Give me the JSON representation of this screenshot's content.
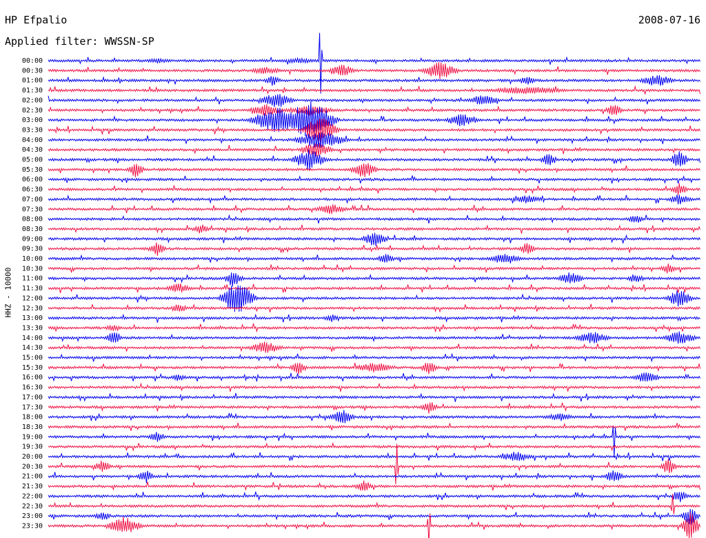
{
  "header": {
    "station": "HP Efpalio",
    "filter": "Applied filter: WWSSN-SP",
    "date": "2008-07-16",
    "channel": "HHZ - 10000"
  },
  "colors": {
    "blue": "#0000ee",
    "red": "#ee1144"
  },
  "chart_data": {
    "type": "line",
    "title": "HP Efpalio",
    "subtitle": "Applied filter: WWSSN-SP",
    "ylabel": "HHZ - 10000",
    "grid": false,
    "rows": [
      "00:00",
      "00:30",
      "01:00",
      "01:30",
      "02:00",
      "02:30",
      "03:00",
      "03:30",
      "04:00",
      "04:30",
      "05:00",
      "05:30",
      "06:00",
      "06:30",
      "07:00",
      "07:30",
      "08:00",
      "08:30",
      "09:00",
      "09:30",
      "10:00",
      "10:30",
      "11:00",
      "11:30",
      "12:00",
      "12:30",
      "13:00",
      "13:30",
      "14:00",
      "14:30",
      "15:00",
      "15:30",
      "16:00",
      "16:30",
      "17:00",
      "17:30",
      "18:00",
      "18:30",
      "19:00",
      "19:30",
      "20:00",
      "20:30",
      "21:00",
      "21:30",
      "22:00",
      "22:30",
      "23:00",
      "23:30"
    ],
    "row_minutes": 30,
    "series_colors": [
      "blue",
      "red"
    ],
    "events": [
      {
        "row": 0,
        "minute": 11.5,
        "amp": 4,
        "dur": 3
      },
      {
        "row": 0,
        "minute": 12.5,
        "amp": 60,
        "dur": 2,
        "spike": true
      },
      {
        "row": 0,
        "minute": 5,
        "amp": 4,
        "dur": 2
      },
      {
        "row": 1,
        "minute": 10,
        "amp": 6,
        "dur": 2
      },
      {
        "row": 1,
        "minute": 13.5,
        "amp": 10,
        "dur": 1.5
      },
      {
        "row": 1,
        "minute": 18,
        "amp": 14,
        "dur": 2
      },
      {
        "row": 2,
        "minute": 10.3,
        "amp": 8,
        "dur": 1
      },
      {
        "row": 2,
        "minute": 28,
        "amp": 10,
        "dur": 2
      },
      {
        "row": 2,
        "minute": 22,
        "amp": 8,
        "dur": 1
      },
      {
        "row": 3,
        "minute": 22,
        "amp": 6,
        "dur": 5
      },
      {
        "row": 4,
        "minute": 10.5,
        "amp": 12,
        "dur": 2
      },
      {
        "row": 4,
        "minute": 20,
        "amp": 8,
        "dur": 2
      },
      {
        "row": 5,
        "minute": 10,
        "amp": 10,
        "dur": 2
      },
      {
        "row": 5,
        "minute": 12,
        "amp": 8,
        "dur": 3
      },
      {
        "row": 5,
        "minute": 26,
        "amp": 10,
        "dur": 1
      },
      {
        "row": 6,
        "minute": 10.5,
        "amp": 20,
        "dur": 3
      },
      {
        "row": 6,
        "minute": 12,
        "amp": 30,
        "dur": 3
      },
      {
        "row": 6,
        "minute": 19,
        "amp": 10,
        "dur": 2
      },
      {
        "row": 7,
        "minute": 12.5,
        "amp": 22,
        "dur": 2
      },
      {
        "row": 8,
        "minute": 12.5,
        "amp": 14,
        "dur": 3
      },
      {
        "row": 9,
        "minute": 12.3,
        "amp": 12,
        "dur": 2
      },
      {
        "row": 10,
        "minute": 12,
        "amp": 16,
        "dur": 2
      },
      {
        "row": 10,
        "minute": 23,
        "amp": 10,
        "dur": 1
      },
      {
        "row": 10,
        "minute": 29,
        "amp": 16,
        "dur": 1
      },
      {
        "row": 11,
        "minute": 14.5,
        "amp": 14,
        "dur": 1.5
      },
      {
        "row": 11,
        "minute": 4,
        "amp": 12,
        "dur": 1
      },
      {
        "row": 13,
        "minute": 29,
        "amp": 10,
        "dur": 1
      },
      {
        "row": 14,
        "minute": 29,
        "amp": 8,
        "dur": 1.5
      },
      {
        "row": 14,
        "minute": 22,
        "amp": 6,
        "dur": 2
      },
      {
        "row": 15,
        "minute": 13,
        "amp": 8,
        "dur": 2
      },
      {
        "row": 16,
        "minute": 27,
        "amp": 7,
        "dur": 1
      },
      {
        "row": 17,
        "minute": 7,
        "amp": 8,
        "dur": 1
      },
      {
        "row": 18,
        "minute": 15,
        "amp": 12,
        "dur": 1.5
      },
      {
        "row": 19,
        "minute": 22,
        "amp": 10,
        "dur": 1
      },
      {
        "row": 19,
        "minute": 5,
        "amp": 12,
        "dur": 1
      },
      {
        "row": 20,
        "minute": 15.5,
        "amp": 10,
        "dur": 1
      },
      {
        "row": 20,
        "minute": 21,
        "amp": 9,
        "dur": 2
      },
      {
        "row": 21,
        "minute": 28.5,
        "amp": 8,
        "dur": 1
      },
      {
        "row": 22,
        "minute": 8.5,
        "amp": 14,
        "dur": 1
      },
      {
        "row": 22,
        "minute": 24,
        "amp": 10,
        "dur": 1.5
      },
      {
        "row": 22,
        "minute": 27,
        "amp": 8,
        "dur": 1
      },
      {
        "row": 23,
        "minute": 6,
        "amp": 8,
        "dur": 1.5
      },
      {
        "row": 24,
        "minute": 8.7,
        "amp": 26,
        "dur": 2
      },
      {
        "row": 24,
        "minute": 29,
        "amp": 14,
        "dur": 1.5
      },
      {
        "row": 25,
        "minute": 6,
        "amp": 8,
        "dur": 1
      },
      {
        "row": 26,
        "minute": 13,
        "amp": 6,
        "dur": 1
      },
      {
        "row": 27,
        "minute": 3,
        "amp": 6,
        "dur": 1
      },
      {
        "row": 28,
        "minute": 3,
        "amp": 12,
        "dur": 1
      },
      {
        "row": 28,
        "minute": 25,
        "amp": 10,
        "dur": 2
      },
      {
        "row": 28,
        "minute": 29,
        "amp": 10,
        "dur": 2
      },
      {
        "row": 29,
        "minute": 10,
        "amp": 10,
        "dur": 2
      },
      {
        "row": 31,
        "minute": 11.5,
        "amp": 10,
        "dur": 1
      },
      {
        "row": 31,
        "minute": 15,
        "amp": 8,
        "dur": 2.5
      },
      {
        "row": 31,
        "minute": 17.5,
        "amp": 10,
        "dur": 1
      },
      {
        "row": 32,
        "minute": 27.5,
        "amp": 10,
        "dur": 1.5
      },
      {
        "row": 32,
        "minute": 6,
        "amp": 6,
        "dur": 1
      },
      {
        "row": 35,
        "minute": 17.5,
        "amp": 10,
        "dur": 1
      },
      {
        "row": 36,
        "minute": 13.5,
        "amp": 12,
        "dur": 1.5
      },
      {
        "row": 36,
        "minute": 23.5,
        "amp": 6,
        "dur": 2
      },
      {
        "row": 38,
        "minute": 5,
        "amp": 9,
        "dur": 1
      },
      {
        "row": 38,
        "minute": 26,
        "amp": 30,
        "dur": 0.5,
        "spike": true
      },
      {
        "row": 40,
        "minute": 21.5,
        "amp": 8,
        "dur": 2
      },
      {
        "row": 41,
        "minute": 2.5,
        "amp": 10,
        "dur": 1
      },
      {
        "row": 41,
        "minute": 16,
        "amp": 40,
        "dur": 0.5,
        "spike": true
      },
      {
        "row": 41,
        "minute": 28.5,
        "amp": 12,
        "dur": 1
      },
      {
        "row": 42,
        "minute": 4.5,
        "amp": 10,
        "dur": 1
      },
      {
        "row": 42,
        "minute": 26,
        "amp": 12,
        "dur": 1
      },
      {
        "row": 43,
        "minute": 14.5,
        "amp": 10,
        "dur": 1
      },
      {
        "row": 44,
        "minute": 29,
        "amp": 10,
        "dur": 1
      },
      {
        "row": 45,
        "minute": 28.7,
        "amp": 20,
        "dur": 0.5,
        "spike": true
      },
      {
        "row": 46,
        "minute": 2.5,
        "amp": 8,
        "dur": 1
      },
      {
        "row": 46,
        "minute": 29.5,
        "amp": 14,
        "dur": 1
      },
      {
        "row": 47,
        "minute": 3.5,
        "amp": 14,
        "dur": 2
      },
      {
        "row": 47,
        "minute": 17.5,
        "amp": 30,
        "dur": 0.5,
        "spike": true
      },
      {
        "row": 47,
        "minute": 29.5,
        "amp": 24,
        "dur": 1
      }
    ]
  }
}
